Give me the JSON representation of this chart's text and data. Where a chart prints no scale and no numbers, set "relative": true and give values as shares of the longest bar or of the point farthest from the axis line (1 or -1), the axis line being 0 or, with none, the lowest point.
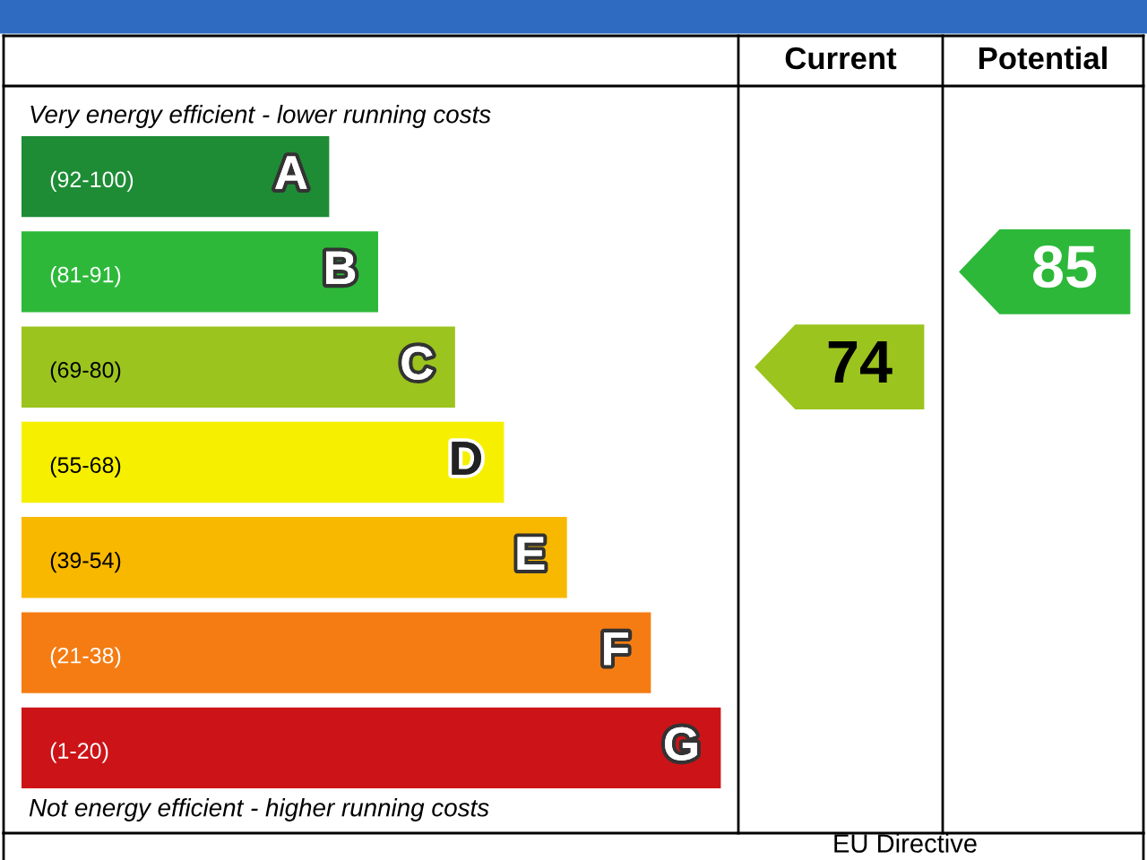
{
  "chart_data": {
    "type": "bar",
    "orientation": "horizontal",
    "relative": true,
    "categories": [
      "A",
      "B",
      "C",
      "D",
      "E",
      "F",
      "G"
    ],
    "values": [
      0.44,
      0.51,
      0.62,
      0.69,
      0.78,
      0.9,
      1
    ],
    "colors": [
      "#1e8c35",
      "#2db83a",
      "#9bc41e",
      "#f6f000",
      "#f8b800",
      "#f47c13",
      "#cc1418"
    ],
    "annotations": [
      "Very energy efficient - lower running costs",
      "Not energy efficient - higher running costs",
      "Current",
      "Potential",
      "(92-100)",
      "(81-91)",
      "(69-80)",
      "(55-68)",
      "(39-54)",
      "(21-38)",
      "(1-20)",
      "74",
      "85",
      "EU Directive"
    ]
  }
}
